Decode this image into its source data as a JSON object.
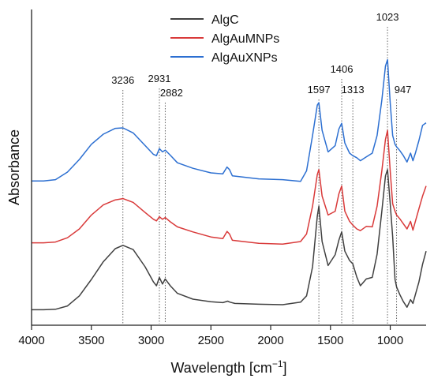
{
  "chart_data": {
    "type": "line",
    "xlabel": "Wavelength [cm",
    "xlabel_sup": "−1",
    "xlabel_close": "]",
    "ylabel": "Absorbance",
    "xlim": [
      4000,
      700
    ],
    "x_reversed": true,
    "x_ticks": [
      4000,
      3500,
      3000,
      2500,
      2000,
      1500,
      1000
    ],
    "legend_position": "top-center",
    "peaks": [
      3236,
      2931,
      2882,
      1597,
      1406,
      1313,
      1023,
      947
    ],
    "series": [
      {
        "name": "AlgC",
        "color": "#404040",
        "values": [
          [
            4000,
            0.03
          ],
          [
            3900,
            0.03
          ],
          [
            3800,
            0.032
          ],
          [
            3700,
            0.045
          ],
          [
            3600,
            0.085
          ],
          [
            3500,
            0.15
          ],
          [
            3400,
            0.22
          ],
          [
            3300,
            0.272
          ],
          [
            3236,
            0.285
          ],
          [
            3150,
            0.268
          ],
          [
            3050,
            0.2
          ],
          [
            2980,
            0.14
          ],
          [
            2955,
            0.125
          ],
          [
            2931,
            0.158
          ],
          [
            2905,
            0.132
          ],
          [
            2882,
            0.152
          ],
          [
            2840,
            0.125
          ],
          [
            2780,
            0.095
          ],
          [
            2650,
            0.072
          ],
          [
            2500,
            0.062
          ],
          [
            2400,
            0.058
          ],
          [
            2360,
            0.064
          ],
          [
            2340,
            0.06
          ],
          [
            2300,
            0.055
          ],
          [
            2100,
            0.052
          ],
          [
            1900,
            0.05
          ],
          [
            1750,
            0.06
          ],
          [
            1700,
            0.085
          ],
          [
            1650,
            0.2
          ],
          [
            1610,
            0.4
          ],
          [
            1597,
            0.44
          ],
          [
            1570,
            0.3
          ],
          [
            1520,
            0.205
          ],
          [
            1460,
            0.248
          ],
          [
            1430,
            0.305
          ],
          [
            1406,
            0.338
          ],
          [
            1380,
            0.262
          ],
          [
            1340,
            0.225
          ],
          [
            1313,
            0.212
          ],
          [
            1280,
            0.16
          ],
          [
            1250,
            0.125
          ],
          [
            1200,
            0.152
          ],
          [
            1150,
            0.158
          ],
          [
            1110,
            0.25
          ],
          [
            1070,
            0.42
          ],
          [
            1040,
            0.56
          ],
          [
            1023,
            0.585
          ],
          [
            1000,
            0.45
          ],
          [
            980,
            0.32
          ],
          [
            960,
            0.15
          ],
          [
            947,
            0.12
          ],
          [
            920,
            0.09
          ],
          [
            890,
            0.062
          ],
          [
            860,
            0.04
          ],
          [
            830,
            0.07
          ],
          [
            810,
            0.055
          ],
          [
            790,
            0.09
          ],
          [
            760,
            0.14
          ],
          [
            730,
            0.21
          ],
          [
            700,
            0.262
          ]
        ]
      },
      {
        "name": "AlgAuMNPs",
        "color": "#d93a3a",
        "values": [
          [
            4000,
            0.295
          ],
          [
            3900,
            0.295
          ],
          [
            3800,
            0.298
          ],
          [
            3700,
            0.315
          ],
          [
            3600,
            0.35
          ],
          [
            3500,
            0.405
          ],
          [
            3400,
            0.445
          ],
          [
            3300,
            0.465
          ],
          [
            3236,
            0.47
          ],
          [
            3150,
            0.455
          ],
          [
            3050,
            0.415
          ],
          [
            2980,
            0.388
          ],
          [
            2955,
            0.382
          ],
          [
            2931,
            0.398
          ],
          [
            2905,
            0.388
          ],
          [
            2882,
            0.395
          ],
          [
            2840,
            0.378
          ],
          [
            2780,
            0.358
          ],
          [
            2650,
            0.338
          ],
          [
            2500,
            0.318
          ],
          [
            2400,
            0.312
          ],
          [
            2365,
            0.34
          ],
          [
            2345,
            0.33
          ],
          [
            2320,
            0.305
          ],
          [
            2100,
            0.293
          ],
          [
            1900,
            0.29
          ],
          [
            1750,
            0.3
          ],
          [
            1700,
            0.33
          ],
          [
            1650,
            0.44
          ],
          [
            1610,
            0.565
          ],
          [
            1597,
            0.585
          ],
          [
            1570,
            0.48
          ],
          [
            1520,
            0.405
          ],
          [
            1460,
            0.42
          ],
          [
            1430,
            0.488
          ],
          [
            1406,
            0.52
          ],
          [
            1380,
            0.42
          ],
          [
            1340,
            0.38
          ],
          [
            1313,
            0.365
          ],
          [
            1280,
            0.35
          ],
          [
            1250,
            0.343
          ],
          [
            1200,
            0.36
          ],
          [
            1150,
            0.358
          ],
          [
            1110,
            0.44
          ],
          [
            1070,
            0.58
          ],
          [
            1040,
            0.705
          ],
          [
            1023,
            0.74
          ],
          [
            1000,
            0.58
          ],
          [
            980,
            0.45
          ],
          [
            960,
            0.42
          ],
          [
            947,
            0.405
          ],
          [
            920,
            0.39
          ],
          [
            890,
            0.37
          ],
          [
            860,
            0.35
          ],
          [
            830,
            0.38
          ],
          [
            810,
            0.345
          ],
          [
            790,
            0.38
          ],
          [
            760,
            0.43
          ],
          [
            730,
            0.48
          ],
          [
            700,
            0.52
          ]
        ]
      },
      {
        "name": "AlgAuXNPs",
        "color": "#2c6fd1",
        "values": [
          [
            4000,
            0.54
          ],
          [
            3900,
            0.54
          ],
          [
            3800,
            0.545
          ],
          [
            3700,
            0.575
          ],
          [
            3600,
            0.625
          ],
          [
            3500,
            0.685
          ],
          [
            3400,
            0.725
          ],
          [
            3300,
            0.748
          ],
          [
            3236,
            0.75
          ],
          [
            3150,
            0.73
          ],
          [
            3050,
            0.68
          ],
          [
            2980,
            0.645
          ],
          [
            2955,
            0.64
          ],
          [
            2931,
            0.668
          ],
          [
            2905,
            0.655
          ],
          [
            2882,
            0.662
          ],
          [
            2840,
            0.642
          ],
          [
            2780,
            0.612
          ],
          [
            2650,
            0.59
          ],
          [
            2500,
            0.572
          ],
          [
            2400,
            0.568
          ],
          [
            2365,
            0.595
          ],
          [
            2345,
            0.585
          ],
          [
            2320,
            0.56
          ],
          [
            2100,
            0.548
          ],
          [
            1900,
            0.545
          ],
          [
            1750,
            0.538
          ],
          [
            1700,
            0.58
          ],
          [
            1650,
            0.72
          ],
          [
            1610,
            0.84
          ],
          [
            1597,
            0.85
          ],
          [
            1570,
            0.74
          ],
          [
            1520,
            0.655
          ],
          [
            1460,
            0.68
          ],
          [
            1430,
            0.745
          ],
          [
            1406,
            0.768
          ],
          [
            1380,
            0.69
          ],
          [
            1340,
            0.65
          ],
          [
            1313,
            0.64
          ],
          [
            1280,
            0.632
          ],
          [
            1250,
            0.62
          ],
          [
            1200,
            0.635
          ],
          [
            1150,
            0.65
          ],
          [
            1110,
            0.72
          ],
          [
            1070,
            0.86
          ],
          [
            1040,
            0.995
          ],
          [
            1023,
            1.02
          ],
          [
            1000,
            0.85
          ],
          [
            980,
            0.72
          ],
          [
            960,
            0.685
          ],
          [
            947,
            0.675
          ],
          [
            920,
            0.66
          ],
          [
            890,
            0.64
          ],
          [
            860,
            0.615
          ],
          [
            830,
            0.65
          ],
          [
            810,
            0.62
          ],
          [
            790,
            0.65
          ],
          [
            760,
            0.7
          ],
          [
            730,
            0.76
          ],
          [
            700,
            0.77
          ]
        ]
      }
    ]
  }
}
